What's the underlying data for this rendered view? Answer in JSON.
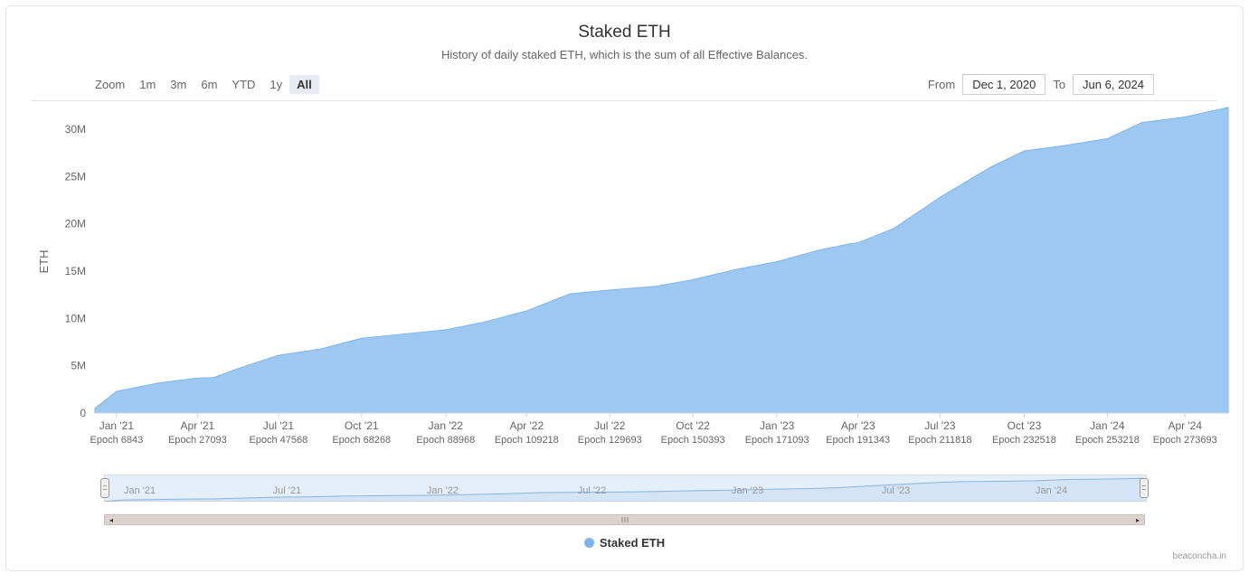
{
  "chart": {
    "type": "area",
    "title": "Staked ETH",
    "subtitle": "History of daily staked ETH, which is the sum of all Effective Balances.",
    "series_name": "Staked ETH",
    "series_color": "#7cb5ec",
    "fill_opacity": 0.75,
    "background_color": "#ffffff",
    "grid_color": "#e6e6e6",
    "y_axis": {
      "title": "ETH",
      "min": 0,
      "max": 32000000,
      "tick_step": 5000000,
      "ticks": [
        "0",
        "5M",
        "10M",
        "15M",
        "20M",
        "25M",
        "30M"
      ]
    },
    "x_axis": {
      "ticks": [
        {
          "label": "Jan '21",
          "sub": "Epoch 6843",
          "pos": 0.02
        },
        {
          "label": "Apr '21",
          "sub": "Epoch 27093",
          "pos": 0.095
        },
        {
          "label": "Jul '21",
          "sub": "Epoch 47568",
          "pos": 0.17
        },
        {
          "label": "Oct '21",
          "sub": "Epoch 68268",
          "pos": 0.247
        },
        {
          "label": "Jan '22",
          "sub": "Epoch 88968",
          "pos": 0.325
        },
        {
          "label": "Apr '22",
          "sub": "Epoch 109218",
          "pos": 0.4
        },
        {
          "label": "Jul '22",
          "sub": "Epoch 129693",
          "pos": 0.477
        },
        {
          "label": "Oct '22",
          "sub": "Epoch 150393",
          "pos": 0.554
        },
        {
          "label": "Jan '23",
          "sub": "Epoch 171093",
          "pos": 0.632
        },
        {
          "label": "Apr '23",
          "sub": "Epoch 191343",
          "pos": 0.707
        },
        {
          "label": "Jul '23",
          "sub": "Epoch 211818",
          "pos": 0.783
        },
        {
          "label": "Oct '23",
          "sub": "Epoch 232518",
          "pos": 0.861
        },
        {
          "label": "Jan '24",
          "sub": "Epoch 253218",
          "pos": 0.938
        },
        {
          "label": "Apr '24",
          "sub": "Epoch 273693",
          "pos": 1.01
        }
      ]
    },
    "data": [
      {
        "x": 0.0,
        "y": 0.5
      },
      {
        "x": 0.02,
        "y": 2.3
      },
      {
        "x": 0.06,
        "y": 3.2
      },
      {
        "x": 0.095,
        "y": 3.7
      },
      {
        "x": 0.11,
        "y": 3.75
      },
      {
        "x": 0.13,
        "y": 4.6
      },
      {
        "x": 0.17,
        "y": 6.1
      },
      {
        "x": 0.21,
        "y": 6.8
      },
      {
        "x": 0.247,
        "y": 7.9
      },
      {
        "x": 0.29,
        "y": 8.4
      },
      {
        "x": 0.325,
        "y": 8.8
      },
      {
        "x": 0.36,
        "y": 9.6
      },
      {
        "x": 0.4,
        "y": 10.8
      },
      {
        "x": 0.44,
        "y": 12.6
      },
      {
        "x": 0.477,
        "y": 13.0
      },
      {
        "x": 0.52,
        "y": 13.4
      },
      {
        "x": 0.554,
        "y": 14.1
      },
      {
        "x": 0.595,
        "y": 15.2
      },
      {
        "x": 0.632,
        "y": 16.0
      },
      {
        "x": 0.67,
        "y": 17.2
      },
      {
        "x": 0.7,
        "y": 17.9
      },
      {
        "x": 0.707,
        "y": 18.0
      },
      {
        "x": 0.74,
        "y": 19.5
      },
      {
        "x": 0.783,
        "y": 22.8
      },
      {
        "x": 0.83,
        "y": 26.0
      },
      {
        "x": 0.861,
        "y": 27.7
      },
      {
        "x": 0.9,
        "y": 28.3
      },
      {
        "x": 0.938,
        "y": 29.0
      },
      {
        "x": 0.97,
        "y": 30.7
      },
      {
        "x": 1.01,
        "y": 31.3
      },
      {
        "x": 1.05,
        "y": 32.3
      }
    ]
  },
  "controls": {
    "zoom_label": "Zoom",
    "zoom_buttons": [
      "1m",
      "3m",
      "6m",
      "YTD",
      "1y",
      "All"
    ],
    "zoom_active_index": 5,
    "from_label": "From",
    "to_label": "To",
    "from_date": "Dec 1, 2020",
    "to_date": "Jun 6, 2024"
  },
  "navigator": {
    "fill_color": "#bfd9f2",
    "selection_color": "#b3d1f0",
    "line_color": "#8ab4dd",
    "ticks": [
      {
        "label": "Jan '21",
        "pos": 0.02
      },
      {
        "label": "Jul '21",
        "pos": 0.17
      },
      {
        "label": "Jan '22",
        "pos": 0.325
      },
      {
        "label": "Jul '22",
        "pos": 0.477
      },
      {
        "label": "Jan '23",
        "pos": 0.632
      },
      {
        "label": "Jul '23",
        "pos": 0.783
      },
      {
        "label": "Jan '24",
        "pos": 0.938
      }
    ]
  },
  "credit": "beaconcha.in"
}
